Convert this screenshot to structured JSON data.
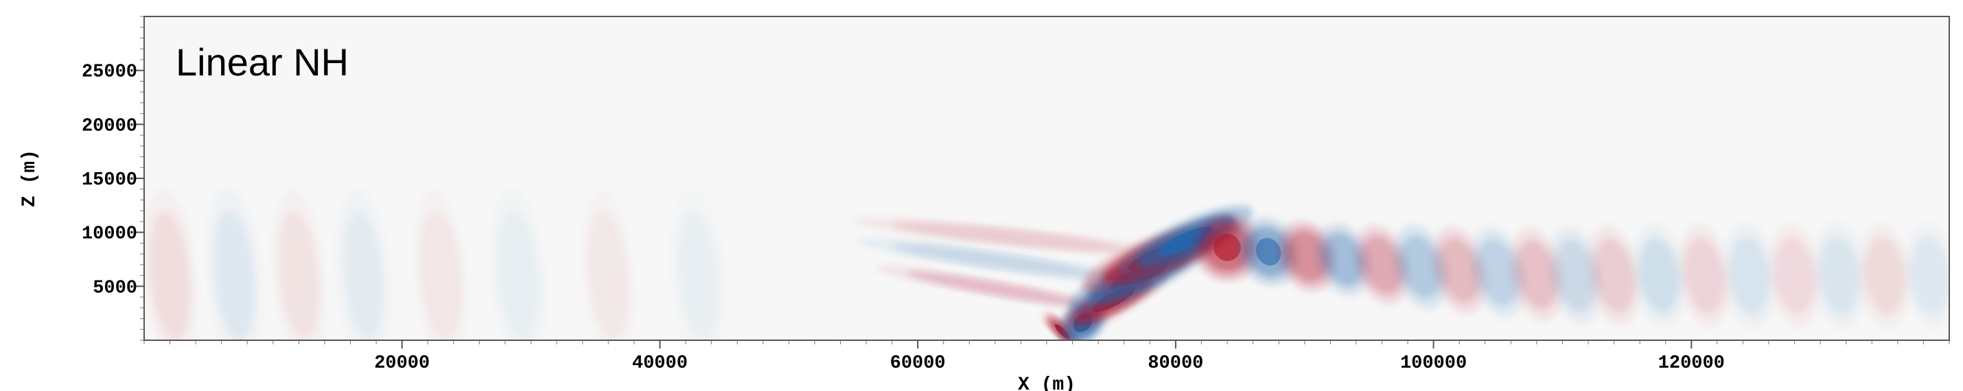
{
  "chart_data": {
    "type": "heatmap",
    "title": "Linear NH",
    "xlabel": "X (m)",
    "ylabel": "Z (m)",
    "xlim": [
      0,
      140000
    ],
    "ylim": [
      0,
      30000
    ],
    "x_ticks": [
      20000,
      40000,
      60000,
      80000,
      100000,
      120000
    ],
    "y_ticks": [
      5000,
      10000,
      15000,
      20000,
      25000
    ],
    "colormap": "RdBu_r",
    "colors": {
      "positive": "#b2182b",
      "negative": "#2166ac",
      "zero": "#f7f7f7"
    },
    "grid": false
  }
}
